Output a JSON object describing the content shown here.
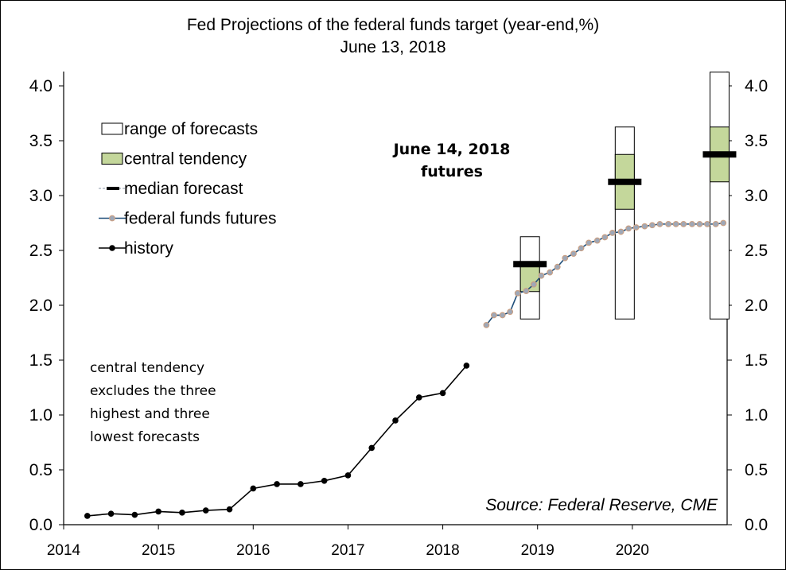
{
  "chart_data": {
    "type": "line",
    "title": "Fed Projections of the federal funds target (year-end,%)",
    "subtitle": "June 13, 2018",
    "xlabel": "",
    "ylabel": "",
    "xlim": [
      2014,
      2021
    ],
    "ylim": [
      0,
      4.0
    ],
    "x_ticks": [
      "2014",
      "2015",
      "2016",
      "2017",
      "2018",
      "2019",
      "2020"
    ],
    "y_ticks_left": [
      "0.0",
      "0.5",
      "1.0",
      "1.5",
      "2.0",
      "2.5",
      "3.0",
      "3.5",
      "4.0"
    ],
    "y_ticks_right": [
      "0.0",
      "0.5",
      "1.0",
      "1.5",
      "2.0",
      "2.5",
      "3.0",
      "3.5",
      "4.0"
    ],
    "grid": false,
    "legend_position": "top-left",
    "legend": [
      {
        "label": "range of forecasts",
        "kind": "range"
      },
      {
        "label": "central tendency",
        "kind": "central"
      },
      {
        "label": "median forecast",
        "kind": "median"
      },
      {
        "label": "federal funds futures",
        "kind": "futures"
      },
      {
        "label": "history",
        "kind": "history"
      }
    ],
    "history": {
      "name": "history",
      "x": [
        2014.25,
        2014.5,
        2014.75,
        2015.0,
        2015.25,
        2015.5,
        2015.75,
        2016.0,
        2016.25,
        2016.5,
        2016.75,
        2017.0,
        2017.25,
        2017.5,
        2017.75,
        2018.0,
        2018.25
      ],
      "y": [
        0.08,
        0.1,
        0.09,
        0.12,
        0.11,
        0.13,
        0.14,
        0.33,
        0.37,
        0.37,
        0.4,
        0.45,
        0.7,
        0.95,
        1.16,
        1.2,
        1.45
      ]
    },
    "futures": {
      "name": "federal funds futures",
      "x": [
        2018.46,
        2018.54,
        2018.63,
        2018.71,
        2018.79,
        2018.88,
        2018.96,
        2019.04,
        2019.13,
        2019.21,
        2019.29,
        2019.38,
        2019.46,
        2019.54,
        2019.63,
        2019.71,
        2019.79,
        2019.88,
        2019.96,
        2020.04,
        2020.13,
        2020.21,
        2020.29,
        2020.38,
        2020.46,
        2020.54,
        2020.63,
        2020.71,
        2020.79,
        2020.88,
        2020.96
      ],
      "y": [
        1.82,
        1.91,
        1.91,
        1.94,
        2.11,
        2.13,
        2.19,
        2.27,
        2.3,
        2.35,
        2.43,
        2.47,
        2.52,
        2.57,
        2.59,
        2.62,
        2.66,
        2.67,
        2.7,
        2.71,
        2.72,
        2.73,
        2.74,
        2.74,
        2.74,
        2.74,
        2.74,
        2.74,
        2.74,
        2.74,
        2.75
      ]
    },
    "projections": [
      {
        "year": 2018,
        "x": 2018.92,
        "range": [
          1.875,
          2.625
        ],
        "central": [
          2.125,
          2.375
        ],
        "median": 2.375
      },
      {
        "year": 2019,
        "x": 2019.92,
        "range": [
          1.875,
          3.625
        ],
        "central": [
          2.875,
          3.375
        ],
        "median": 3.125
      },
      {
        "year": 2020,
        "x": 2020.92,
        "range": [
          1.875,
          4.125
        ],
        "central": [
          3.125,
          3.625
        ],
        "median": 3.375
      }
    ],
    "annotations": {
      "futures_label": [
        "June 14, 2018",
        "futures"
      ],
      "note": [
        "central tendency",
        "excludes the three",
        "highest and three",
        "lowest forecasts"
      ],
      "source": "Source: Federal Reserve, CME"
    },
    "colors": {
      "central_fill": "#c4d79b",
      "futures_line": "#1f4e79",
      "futures_marker": "#c9a085",
      "history": "#000000"
    }
  }
}
